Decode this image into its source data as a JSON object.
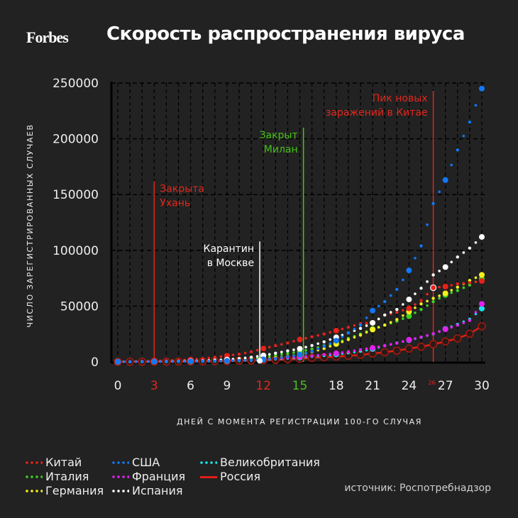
{
  "header": {
    "logo": "Forbes",
    "title": "Скорость распространения вируса"
  },
  "source": "источник: Роспотребнадзор",
  "chart_data": {
    "type": "line",
    "title": "Скорость распространения вируса",
    "xlabel": "ДНЕЙ С МОМЕНТА РЕГИСТРАЦИИ 100-ГО СЛУЧАЯ",
    "ylabel": "ЧИСЛО ЗАРЕГИСТРИРОВАННЫХ СЛУЧАЕВ",
    "xlim": [
      0,
      30
    ],
    "ylim": [
      0,
      250000
    ],
    "grid": true,
    "legend_position": "bottom",
    "x_ticks": [
      0,
      3,
      6,
      9,
      12,
      15,
      18,
      21,
      24,
      27,
      30
    ],
    "x_tick_colors": {
      "3": "#e0281e",
      "12": "#e0281e",
      "15": "#49c21a"
    },
    "y_ticks": [
      0,
      50000,
      100000,
      150000,
      200000,
      250000
    ],
    "x": [
      0,
      1,
      2,
      3,
      4,
      5,
      6,
      7,
      8,
      9,
      10,
      11,
      12,
      13,
      14,
      15,
      16,
      17,
      18,
      19,
      20,
      21,
      22,
      23,
      24,
      25,
      26,
      27,
      28,
      29,
      30
    ],
    "series": [
      {
        "name": "Китай",
        "color": "#e8211a",
        "style": "dotted",
        "values": [
          100,
          300,
          550,
          800,
          1100,
          1500,
          2000,
          2800,
          4200,
          5500,
          7000,
          9000,
          12000,
          14500,
          17000,
          20000,
          22500,
          25000,
          28000,
          31000,
          34500,
          35000,
          42000,
          44500,
          48000,
          55000,
          66500,
          67500,
          70000,
          71000,
          72500
        ]
      },
      {
        "name": "Италия",
        "color": "#3cd11f",
        "style": "dotted",
        "values": [
          100,
          150,
          230,
          320,
          400,
          650,
          900,
          1100,
          1700,
          2100,
          2500,
          3100,
          4600,
          6000,
          7500,
          9200,
          11500,
          14500,
          17000,
          21000,
          25000,
          29500,
          33000,
          36500,
          41000,
          47000,
          54000,
          60000,
          64000,
          69000,
          74500
        ]
      },
      {
        "name": "Германия",
        "color": "#f7f01b",
        "style": "dotted",
        "values": [
          100,
          130,
          160,
          200,
          260,
          350,
          480,
          650,
          800,
          1000,
          1300,
          1900,
          2800,
          3700,
          4900,
          6500,
          9000,
          12000,
          16000,
          20000,
          24000,
          29000,
          33000,
          38000,
          45000,
          52000,
          57000,
          61500,
          67000,
          73000,
          78000
        ]
      },
      {
        "name": "США",
        "color": "#1277f4",
        "style": "dotted",
        "values": [
          100,
          120,
          150,
          200,
          250,
          350,
          450,
          550,
          750,
          1000,
          1300,
          1700,
          2300,
          3100,
          4700,
          6500,
          9400,
          14000,
          19000,
          26000,
          33000,
          46000,
          54000,
          65000,
          82000,
          104000,
          142000,
          163000,
          190000,
          215000,
          245000
        ]
      },
      {
        "name": "Франция",
        "color": "#e41ff0",
        "style": "dotted",
        "values": [
          100,
          130,
          190,
          210,
          280,
          420,
          610,
          700,
          950,
          1200,
          1400,
          1800,
          2300,
          2900,
          3700,
          4500,
          5400,
          6600,
          7700,
          9100,
          11000,
          12600,
          14500,
          16700,
          19800,
          22300,
          25300,
          29200,
          32900,
          37100,
          52000
        ]
      },
      {
        "name": "Испания",
        "color": "#ffffff",
        "style": "dotted",
        "values": [
          100,
          150,
          200,
          260,
          360,
          520,
          680,
          1000,
          1600,
          2100,
          3000,
          4200,
          5800,
          7800,
          9900,
          11800,
          14700,
          18000,
          22000,
          26000,
          30000,
          35000,
          42000,
          47000,
          56000,
          66000,
          78000,
          85000,
          94000,
          102000,
          112000
        ]
      },
      {
        "name": "Великобритания",
        "color": "#16e5ea",
        "style": "dotted",
        "values": [
          100,
          120,
          160,
          210,
          270,
          320,
          380,
          460,
          590,
          800,
          1100,
          1400,
          1950,
          2600,
          3300,
          3900,
          5000,
          5700,
          6700,
          8100,
          9500,
          11600,
          14500,
          17000,
          19500,
          22100,
          25100,
          29500,
          33700,
          38200,
          47800
        ]
      },
      {
        "name": "Россия",
        "color": "#e11f16",
        "style": "solid",
        "values": [
          100,
          120,
          150,
          200,
          250,
          300,
          400,
          500,
          650,
          850,
          1050,
          1250,
          1530,
          1830,
          2330,
          2780,
          3550,
          4150,
          4700,
          5400,
          6300,
          7500,
          8700,
          10100,
          11900,
          13600,
          15800,
          18300,
          21100,
          25200,
          32000
        ]
      }
    ],
    "annotations": [
      {
        "day": 3,
        "label_lines": [
          "Закрыта",
          "Ухань"
        ],
        "color": "#e0281e",
        "top_value": 162000
      },
      {
        "day": 11.7,
        "label_lines": [
          "Карантин",
          "в Москве"
        ],
        "color": "#ffffff",
        "top_value": 108000,
        "label_side": "left"
      },
      {
        "day": 15.3,
        "label_lines": [
          "Закрыт",
          "Милан"
        ],
        "color": "#49c21a",
        "top_value": 210000,
        "label_side": "left"
      },
      {
        "day": 26,
        "label_lines": [
          "Пик новых",
          "заражений в Китае"
        ],
        "color": "#e0281e",
        "top_value": 243000,
        "label_side": "left",
        "marker_label": "26"
      }
    ]
  },
  "legend": {
    "items": [
      {
        "label": "Китай",
        "color": "#e8211a",
        "style": "dotted"
      },
      {
        "label": "США",
        "color": "#1277f4",
        "style": "dotted"
      },
      {
        "label": "Великобритания",
        "color": "#16e5ea",
        "style": "dotted"
      },
      {
        "label": "Италия",
        "color": "#3cd11f",
        "style": "dotted"
      },
      {
        "label": "Франция",
        "color": "#e41ff0",
        "style": "dotted"
      },
      {
        "label": "Россия",
        "color": "#e11f16",
        "style": "solid"
      },
      {
        "label": "Германия",
        "color": "#f7f01b",
        "style": "dotted"
      },
      {
        "label": "Испания",
        "color": "#ffffff",
        "style": "dotted"
      }
    ]
  }
}
